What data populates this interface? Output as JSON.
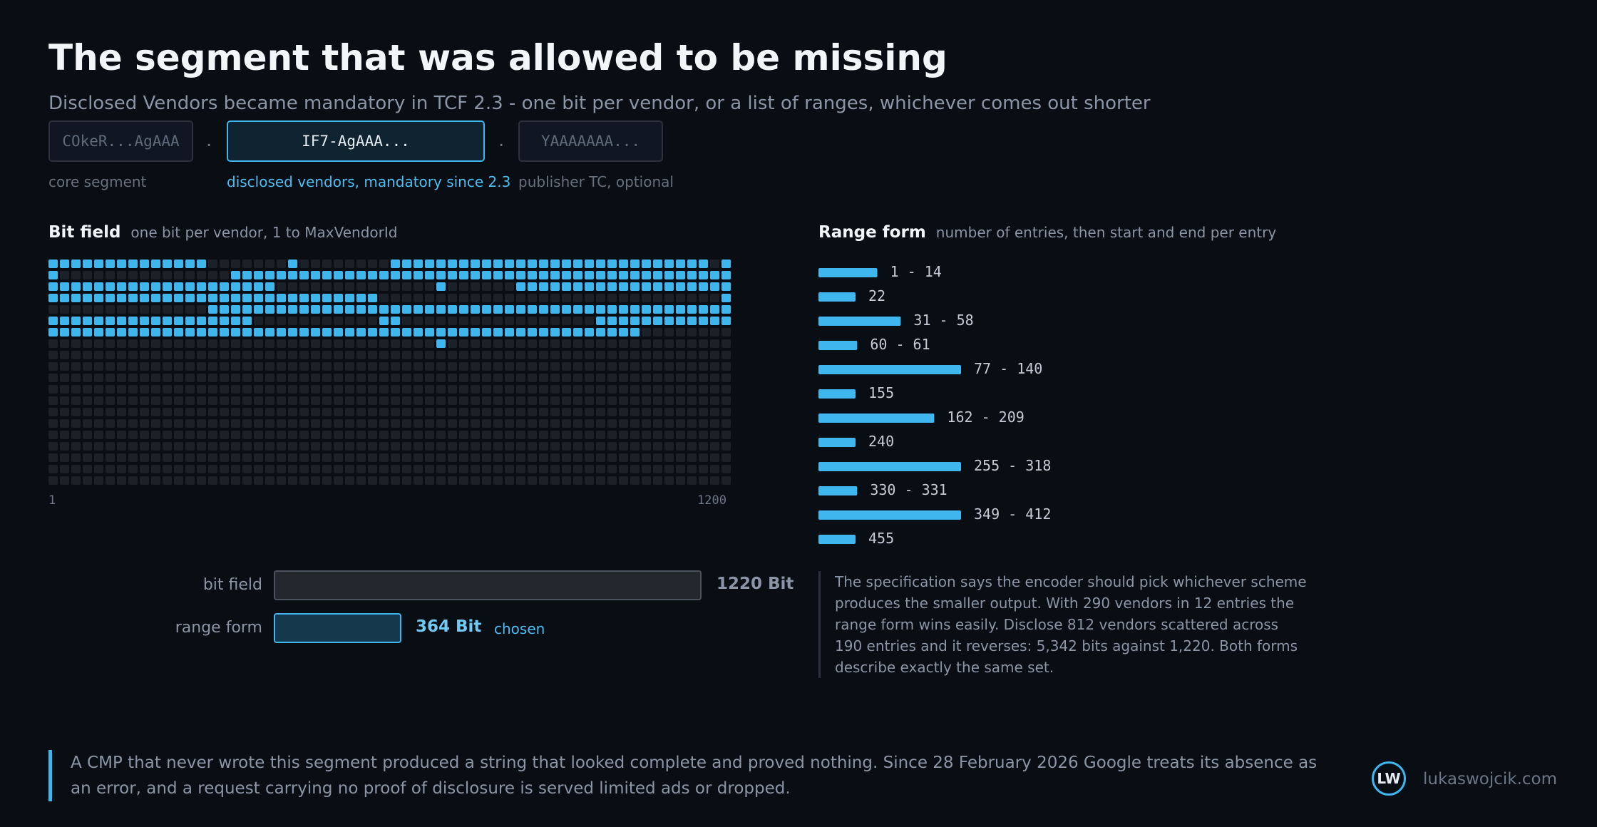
{
  "header": {
    "title": "The segment that was allowed to be missing",
    "subtitle": "Disclosed Vendors became mandatory in TCF 2.3 - one bit per vendor, or a list of ranges, whichever comes out shorter"
  },
  "segments": [
    {
      "value": "COkeR...AgAAA",
      "label": "core segment"
    },
    {
      "value": "IF7-AgAAA...",
      "label": "disclosed vendors, mandatory since 2.3"
    },
    {
      "value": "YAAAAAAA...",
      "label": "publisher TC, optional"
    }
  ],
  "separator": ".",
  "bitfield": {
    "title": "Bit field",
    "description": "one bit per vendor, 1 to MaxVendorId",
    "start_label": "1",
    "end_label": "1200",
    "columns": 60,
    "rows": 20
  },
  "rangeform": {
    "title": "Range form",
    "description": "number of entries, then start and end per entry"
  },
  "chart_data": {
    "type": "bar",
    "entries": [
      {
        "start": 1,
        "end": 14,
        "label": "1 - 14"
      },
      {
        "start": 22,
        "end": 22,
        "label": "22"
      },
      {
        "start": 31,
        "end": 58,
        "label": "31 - 58"
      },
      {
        "start": 60,
        "end": 61,
        "label": "60 - 61"
      },
      {
        "start": 77,
        "end": 140,
        "label": "77 - 140"
      },
      {
        "start": 155,
        "end": 155,
        "label": "155"
      },
      {
        "start": 162,
        "end": 209,
        "label": "162 - 209"
      },
      {
        "start": 240,
        "end": 240,
        "label": "240"
      },
      {
        "start": 255,
        "end": 318,
        "label": "255 - 318"
      },
      {
        "start": 330,
        "end": 331,
        "label": "330 - 331"
      },
      {
        "start": 349,
        "end": 412,
        "label": "349 - 412"
      },
      {
        "start": 455,
        "end": 455,
        "label": "455"
      }
    ]
  },
  "comparison": {
    "bitfield_label": "bit field",
    "bitfield_value": "1220 Bit",
    "bitfield_bits": 1220,
    "range_label": "range form",
    "range_value": "364 Bit",
    "range_bits": 364,
    "chosen_label": "chosen"
  },
  "note": "The specification says the encoder should pick whichever scheme produces the smaller output. With 290 vendors in 12 entries the range form wins easily. Disclose 812 vendors scattered across 190 entries and it reverses: 5,342 bits against 1,220. Both forms describe exactly the same set.",
  "footer": {
    "text": "A CMP that never wrote this segment produced a string that looked complete and proved nothing. Since 28 February 2026 Google treats its absence as an error, and a request carrying no proof of disclosure is served limited ads or dropped.",
    "logo": "LW",
    "site": "lukaswojcik.com"
  },
  "colors": {
    "accent": "#3fb6ee",
    "cell_on": "#3fb6ee",
    "cell_off": "#1b2029",
    "background": "#090d14"
  }
}
